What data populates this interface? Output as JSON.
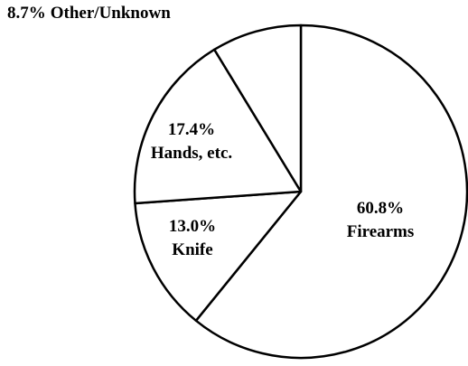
{
  "chart_data": {
    "type": "pie",
    "categories": [
      "Firearms",
      "Knife",
      "Hands, etc.",
      "Other/Unknown"
    ],
    "values": [
      60.8,
      13.0,
      17.4,
      8.7
    ],
    "value_labels": [
      "60.8%",
      "13.0%",
      "17.4%",
      "8.7%"
    ],
    "color": "#ffffff"
  }
}
